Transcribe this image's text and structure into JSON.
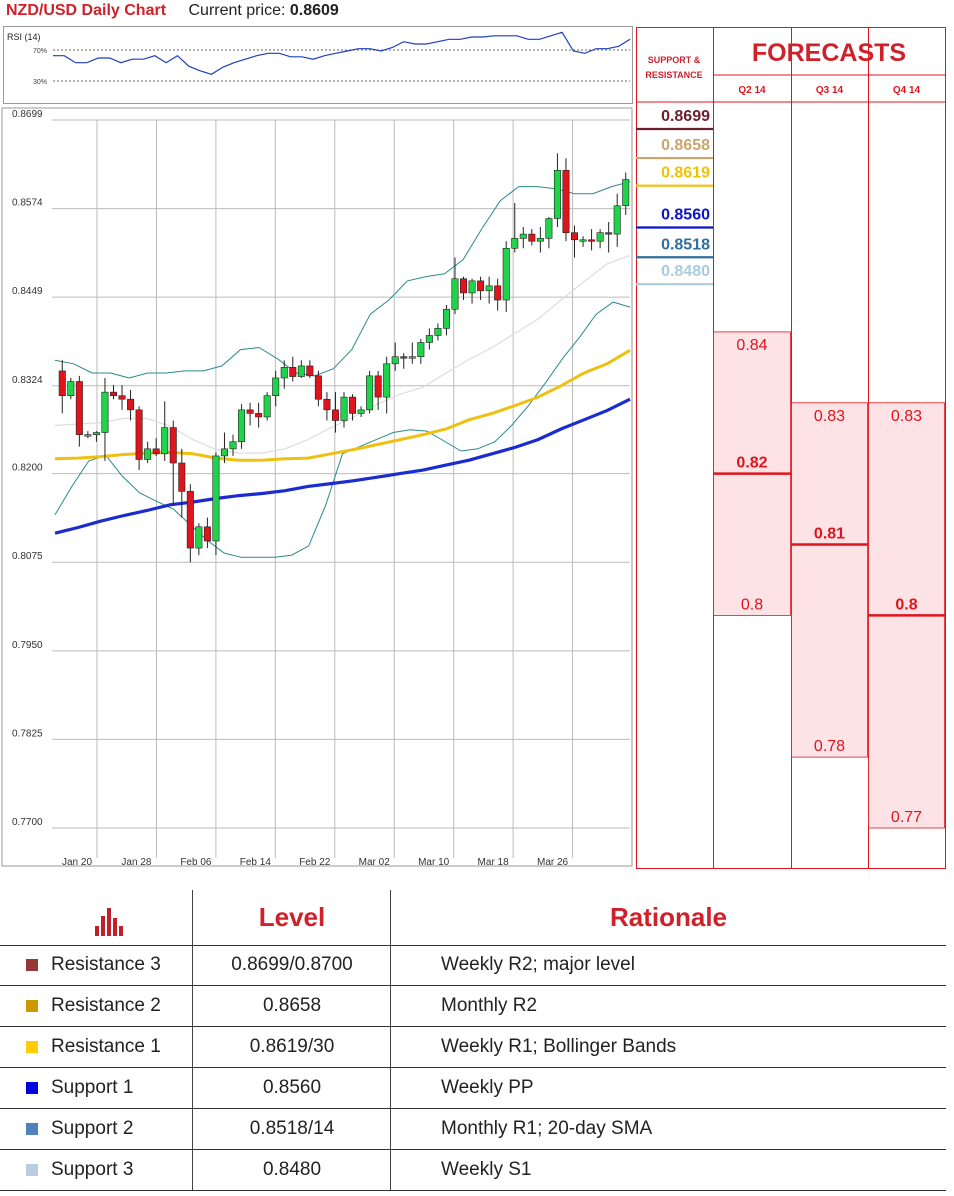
{
  "header": {
    "title": "NZD/USD Daily Chart",
    "price_label": "Current price:",
    "price_value": "0.8609"
  },
  "chart_data": [
    {
      "type": "line",
      "title": "RSI (14)",
      "ylim": [
        20,
        80
      ],
      "y_ticks": [
        "70%",
        "30%"
      ],
      "series": [
        {
          "values": [
            58,
            58,
            52,
            52,
            56,
            56,
            52,
            55,
            55,
            58,
            52,
            58,
            49,
            45,
            42,
            48,
            52,
            55,
            58,
            60,
            60,
            57,
            57,
            55,
            58,
            60,
            62,
            64,
            64,
            62,
            65,
            70,
            68,
            68,
            70,
            72,
            72,
            74,
            74,
            75,
            75,
            75,
            72,
            72,
            75,
            78,
            62,
            60,
            64,
            64,
            66,
            72
          ]
        }
      ]
    },
    {
      "type": "candlestick",
      "y_axis_labels": [
        "0.8699",
        "0.8574",
        "0.8449",
        "0.8324",
        "0.8200",
        "0.8075",
        "0.7950",
        "0.7825",
        "0.7700"
      ],
      "ylim": [
        0.77,
        0.8699
      ],
      "x_axis_labels": [
        "Jan 20",
        "Jan 28",
        "Feb 06",
        "Feb 14",
        "Feb 22",
        "Mar 02",
        "Mar 10",
        "Mar 18",
        "Mar 26"
      ],
      "candles": [
        [
          0.8345,
          0.836,
          0.8285,
          0.831
        ],
        [
          0.831,
          0.8335,
          0.8305,
          0.833
        ],
        [
          0.833,
          0.8338,
          0.8238,
          0.8255
        ],
        [
          0.8255,
          0.826,
          0.825,
          0.8255
        ],
        [
          0.8255,
          0.826,
          0.8245,
          0.8258
        ],
        [
          0.8258,
          0.8335,
          0.8218,
          0.8315
        ],
        [
          0.8315,
          0.8325,
          0.8305,
          0.831
        ],
        [
          0.831,
          0.8325,
          0.829,
          0.8305
        ],
        [
          0.8305,
          0.8318,
          0.8275,
          0.829
        ],
        [
          0.829,
          0.8295,
          0.8205,
          0.822
        ],
        [
          0.822,
          0.8245,
          0.8215,
          0.8235
        ],
        [
          0.8235,
          0.825,
          0.8225,
          0.8228
        ],
        [
          0.8228,
          0.8302,
          0.8218,
          0.8265
        ],
        [
          0.8265,
          0.8275,
          0.8155,
          0.8215
        ],
        [
          0.8215,
          0.8235,
          0.8138,
          0.8175
        ],
        [
          0.8175,
          0.8185,
          0.8075,
          0.8095
        ],
        [
          0.8095,
          0.813,
          0.8085,
          0.8125
        ],
        [
          0.8125,
          0.8138,
          0.8095,
          0.8105
        ],
        [
          0.8105,
          0.823,
          0.8085,
          0.8225
        ],
        [
          0.8225,
          0.8258,
          0.8215,
          0.8235
        ],
        [
          0.8235,
          0.8255,
          0.8225,
          0.8245
        ],
        [
          0.8245,
          0.8298,
          0.8235,
          0.829
        ],
        [
          0.829,
          0.83,
          0.8268,
          0.8285
        ],
        [
          0.8285,
          0.83,
          0.8265,
          0.828
        ],
        [
          0.828,
          0.8315,
          0.8275,
          0.831
        ],
        [
          0.831,
          0.8345,
          0.8295,
          0.8335
        ],
        [
          0.8335,
          0.836,
          0.832,
          0.835
        ],
        [
          0.835,
          0.8365,
          0.833,
          0.8337
        ],
        [
          0.8337,
          0.836,
          0.8335,
          0.8352
        ],
        [
          0.8352,
          0.836,
          0.8335,
          0.8338
        ],
        [
          0.8338,
          0.8345,
          0.8295,
          0.8305
        ],
        [
          0.8305,
          0.8315,
          0.8275,
          0.829
        ],
        [
          0.829,
          0.8315,
          0.8258,
          0.8275
        ],
        [
          0.8275,
          0.8315,
          0.8265,
          0.8308
        ],
        [
          0.8308,
          0.8312,
          0.8275,
          0.8285
        ],
        [
          0.8285,
          0.8295,
          0.828,
          0.829
        ],
        [
          0.829,
          0.8345,
          0.8285,
          0.8338
        ],
        [
          0.8338,
          0.8345,
          0.829,
          0.8308
        ],
        [
          0.8308,
          0.8365,
          0.8285,
          0.8355
        ],
        [
          0.8355,
          0.8385,
          0.8345,
          0.8365
        ],
        [
          0.8365,
          0.837,
          0.8348,
          0.8363
        ],
        [
          0.8363,
          0.8385,
          0.8355,
          0.8365
        ],
        [
          0.8365,
          0.839,
          0.8355,
          0.8385
        ],
        [
          0.8385,
          0.8405,
          0.8375,
          0.8395
        ],
        [
          0.8395,
          0.8412,
          0.8388,
          0.8405
        ],
        [
          0.8405,
          0.8438,
          0.8395,
          0.8432
        ],
        [
          0.8432,
          0.8505,
          0.8425,
          0.8475
        ],
        [
          0.8475,
          0.8478,
          0.8445,
          0.8455
        ],
        [
          0.8455,
          0.8475,
          0.844,
          0.8472
        ],
        [
          0.8472,
          0.8478,
          0.8445,
          0.8458
        ],
        [
          0.8458,
          0.8478,
          0.844,
          0.8465
        ],
        [
          0.8465,
          0.8475,
          0.843,
          0.8445
        ],
        [
          0.8445,
          0.8528,
          0.8428,
          0.8518
        ],
        [
          0.8518,
          0.8582,
          0.8512,
          0.8532
        ],
        [
          0.8532,
          0.8548,
          0.8518,
          0.8538
        ],
        [
          0.8538,
          0.8545,
          0.8522,
          0.8528
        ],
        [
          0.8528,
          0.8548,
          0.8512,
          0.8532
        ],
        [
          0.8532,
          0.8562,
          0.8518,
          0.856
        ],
        [
          0.856,
          0.8652,
          0.8548,
          0.8628
        ],
        [
          0.8628,
          0.8645,
          0.8528,
          0.854
        ],
        [
          0.854,
          0.855,
          0.8505,
          0.853
        ],
        [
          0.853,
          0.8535,
          0.852,
          0.853
        ],
        [
          0.853,
          0.8545,
          0.8515,
          0.8528
        ],
        [
          0.8528,
          0.8545,
          0.8518,
          0.854
        ],
        [
          0.854,
          0.8555,
          0.8512,
          0.8538
        ],
        [
          0.8538,
          0.8595,
          0.852,
          0.8578
        ],
        [
          0.8578,
          0.8625,
          0.8565,
          0.8615
        ]
      ],
      "series": [
        {
          "name": "SMA blue",
          "values": [
            0.8116,
            0.8124,
            0.8133,
            0.8141,
            0.8148,
            0.8156,
            0.816,
            0.8165,
            0.8169,
            0.8172,
            0.8176,
            0.8182,
            0.8186,
            0.819,
            0.8195,
            0.82,
            0.8205,
            0.8212,
            0.8219,
            0.8228,
            0.8237,
            0.8248,
            0.8263,
            0.8276,
            0.8289,
            0.8305
          ]
        },
        {
          "name": "SMA yellow",
          "values": [
            0.8221,
            0.8222,
            0.8224,
            0.8227,
            0.8229,
            0.823,
            0.8228,
            0.8222,
            0.8219,
            0.8219,
            0.8221,
            0.8222,
            0.8228,
            0.8234,
            0.8241,
            0.8248,
            0.8255,
            0.8263,
            0.8276,
            0.8285,
            0.8296,
            0.8308,
            0.8324,
            0.8342,
            0.8355,
            0.8374
          ]
        },
        {
          "name": "SMA grey",
          "values": [
            0.8268,
            0.827,
            0.8272,
            0.8278,
            0.8278,
            0.8267,
            0.8248,
            0.8234,
            0.8229,
            0.8229,
            0.8235,
            0.8248,
            0.8265,
            0.828,
            0.8298,
            0.8312,
            0.8322,
            0.8342,
            0.8361,
            0.8378,
            0.8398,
            0.8418,
            0.8445,
            0.8471,
            0.8496,
            0.8508
          ]
        },
        {
          "name": "BB upper",
          "values": [
            0.836,
            0.8355,
            0.8342,
            0.8342,
            0.8335,
            0.8342,
            0.8342,
            0.8345,
            0.8345,
            0.8352,
            0.8375,
            0.8378,
            0.8362,
            0.8342,
            0.8338,
            0.8348,
            0.8375,
            0.8425,
            0.8445,
            0.8472,
            0.8478,
            0.8482,
            0.8502,
            0.8545,
            0.8585,
            0.8605,
            0.8605,
            0.8602,
            0.8595,
            0.8595,
            0.8605,
            0.8612
          ]
        },
        {
          "name": "BB lower",
          "values": [
            0.8142,
            0.8182,
            0.8218,
            0.8226,
            0.8196,
            0.8173,
            0.8161,
            0.815,
            0.8128,
            0.8106,
            0.8088,
            0.8082,
            0.8082,
            0.8082,
            0.8085,
            0.8098,
            0.8155,
            0.8228,
            0.8238,
            0.8248,
            0.8258,
            0.8262,
            0.826,
            0.8246,
            0.8232,
            0.8235,
            0.8245,
            0.8268,
            0.8296,
            0.8328,
            0.8362,
            0.8392,
            0.8425,
            0.8442,
            0.8435
          ]
        }
      ]
    }
  ],
  "support_resistance": {
    "title": "SUPPORT & RESISTANCE",
    "levels": [
      {
        "label": "0.8699",
        "value": 0.8699,
        "color": "#6b1f2e"
      },
      {
        "label": "0.8658",
        "value": 0.8658,
        "color": "#c9a66b"
      },
      {
        "label": "0.8619",
        "value": 0.8619,
        "color": "#f2c200"
      },
      {
        "label": "0.8560",
        "value": 0.856,
        "color": "#0a14c8"
      },
      {
        "label": "0.8518",
        "value": 0.8518,
        "color": "#2f6e9e"
      },
      {
        "label": "0.8480",
        "value": 0.848,
        "color": "#a9cce0"
      }
    ]
  },
  "forecasts": {
    "title": "FORECASTS",
    "quarters": [
      {
        "label": "Q2 14",
        "high": 0.84,
        "mid": 0.82,
        "low": 0.8,
        "high_label": "0.84",
        "mid_label": "0.82",
        "low_label": "0.8",
        "mid_bold": true
      },
      {
        "label": "Q3 14",
        "high": 0.83,
        "mid": 0.81,
        "low": 0.78,
        "high_label": "0.83",
        "mid_label": "0.81",
        "low_label": "0.78",
        "mid_bold": true
      },
      {
        "label": "Q4 14",
        "high": 0.83,
        "mid": 0.8,
        "low": 0.77,
        "high_label": "0.83",
        "mid_label": "0.8",
        "low_label": "0.77",
        "mid_bold": true
      }
    ]
  },
  "table": {
    "headers": {
      "level": "Level",
      "rationale": "Rationale"
    },
    "rows": [
      {
        "name": "Resistance 3",
        "level": "0.8699/0.8700",
        "rationale": "Weekly R2; major level",
        "color": "#953735"
      },
      {
        "name": "Resistance 2",
        "level": "0.8658",
        "rationale": "Monthly R2",
        "color": "#cc9900"
      },
      {
        "name": "Resistance 1",
        "level": "0.8619/30",
        "rationale": "Weekly R1; Bollinger Bands",
        "color": "#ffcc00"
      },
      {
        "name": "Support 1",
        "level": "0.8560",
        "rationale": "Weekly PP",
        "color": "#0000dd"
      },
      {
        "name": "Support 2",
        "level": "0.8518/14",
        "rationale": "Monthly R1; 20-day SMA",
        "color": "#4f81bd"
      },
      {
        "name": "Support 3",
        "level": "0.8480",
        "rationale": "Weekly S1",
        "color": "#b9cde5"
      }
    ]
  }
}
